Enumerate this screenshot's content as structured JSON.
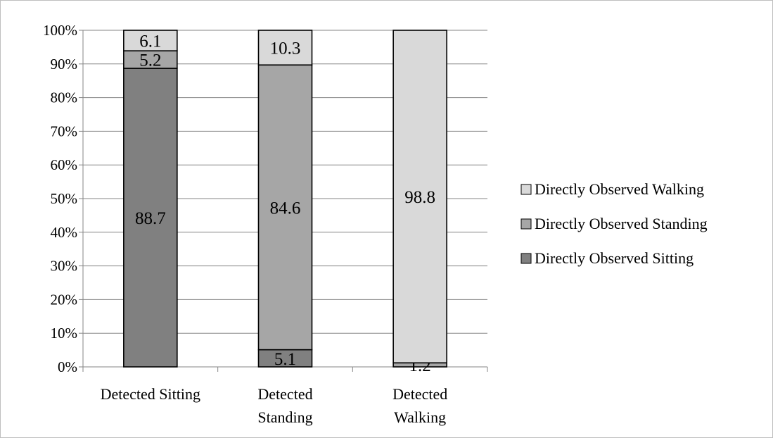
{
  "chart_data": {
    "type": "bar",
    "stacked": true,
    "percent": true,
    "categories": [
      [
        "Detected Sitting"
      ],
      [
        "Detected",
        "Standing"
      ],
      [
        "Detected",
        "Walking"
      ]
    ],
    "series": [
      {
        "name": "Directly Observed Sitting",
        "values": [
          88.7,
          5.1,
          0
        ],
        "labels": [
          "88.7",
          "5.1",
          ""
        ],
        "color": "#808080"
      },
      {
        "name": "Directly Observed Standing",
        "values": [
          5.2,
          84.6,
          1.2
        ],
        "labels": [
          "5.2",
          "84.6",
          "1.2"
        ],
        "color": "#a6a6a6"
      },
      {
        "name": "Directly Observed Walking",
        "values": [
          6.1,
          10.3,
          98.8
        ],
        "labels": [
          "6.1",
          "10.3",
          "98.8"
        ],
        "color": "#d9d9d9"
      }
    ],
    "ylim": [
      0,
      100
    ],
    "yticks": [
      "0%",
      "10%",
      "20%",
      "30%",
      "40%",
      "50%",
      "60%",
      "70%",
      "80%",
      "90%",
      "100%"
    ],
    "grid": true,
    "legend_position": "right"
  }
}
